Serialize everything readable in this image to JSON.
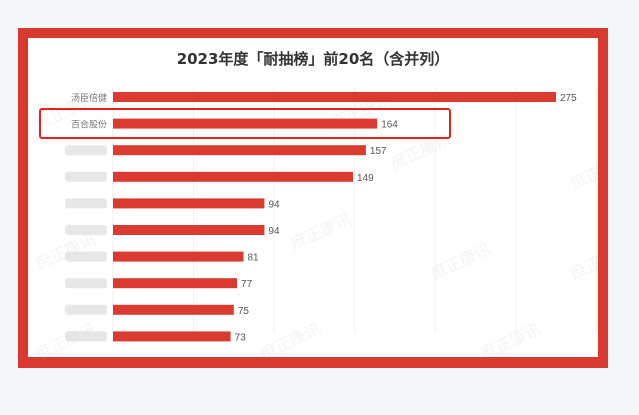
{
  "chart_data": {
    "type": "bar",
    "orientation": "horizontal",
    "title": "2023年度「耐抽榜」前20名（含并列）",
    "categories": [
      "汤臣倍健",
      "百合股份",
      "",
      "",
      "",
      "",
      "",
      "",
      "",
      ""
    ],
    "values": [
      275,
      164,
      157,
      149,
      94,
      94,
      81,
      77,
      75,
      73
    ],
    "xlim": [
      0,
      300
    ],
    "grid": true,
    "highlighted_category": "百合股份",
    "bar_color": "#db3a30",
    "highlight_color": "#e5231b",
    "watermark": "庶正康讯"
  }
}
